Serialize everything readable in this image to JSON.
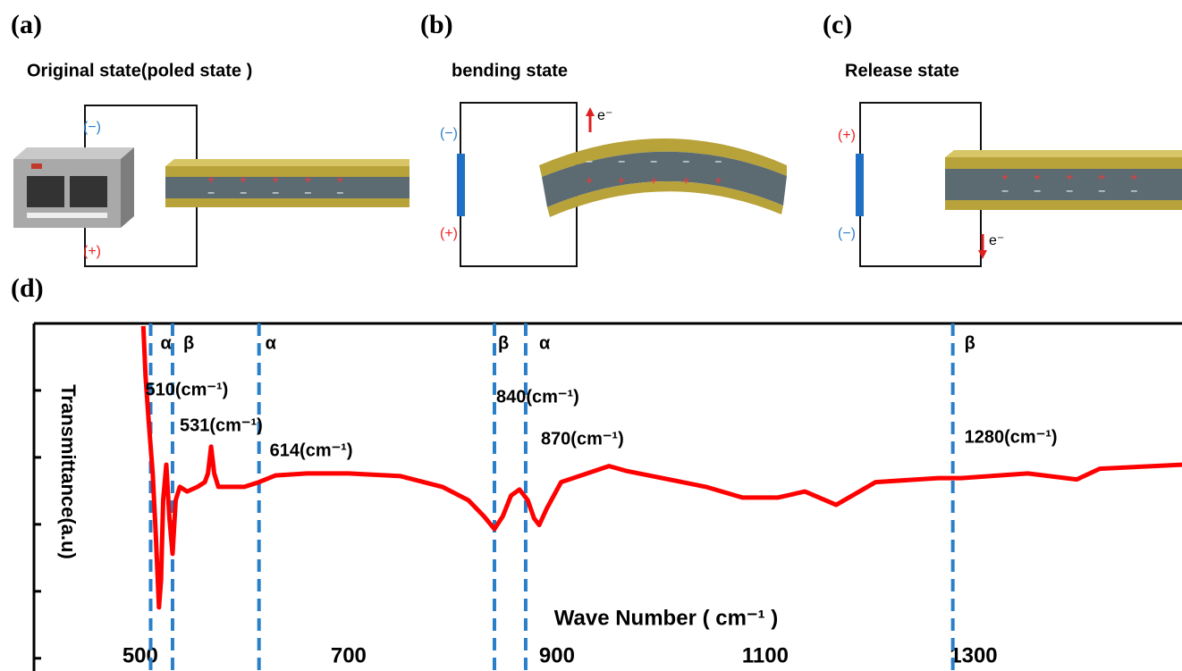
{
  "panels": [
    {
      "label": "(a)",
      "title": "Original state(poled state )",
      "top_terminal": "(−)",
      "bottom_terminal": "(+)",
      "charges_top": "+ + + + +",
      "charges_bottom": "− − − − −"
    },
    {
      "label": "(b)",
      "title": "bending state",
      "top_terminal": "(−)",
      "bottom_terminal": "(+)",
      "electron": "e⁻",
      "charges_top": "− − − − −",
      "charges_bottom": "+ + + + +"
    },
    {
      "label": "(c)",
      "title": "Release state",
      "top_terminal": "(+)",
      "bottom_terminal": "(−)",
      "electron": "e⁻",
      "charges_top": "+ + + + +",
      "charges_bottom": "− − − − −"
    }
  ],
  "chart_data": {
    "type": "line",
    "label": "(d)",
    "xlabel": "Wave Number ( cm⁻¹ )",
    "ylabel": "Transmittance(a.u)",
    "x": [
      503,
      505,
      508,
      510,
      512,
      515,
      518,
      520,
      522,
      525,
      528,
      531,
      534,
      538,
      545,
      555,
      562,
      565,
      568,
      571,
      575,
      585,
      600,
      614,
      630,
      660,
      700,
      750,
      790,
      815,
      830,
      840,
      848,
      856,
      864,
      872,
      878,
      883,
      890,
      904,
      950,
      966,
      1043,
      1078,
      1112,
      1138,
      1168,
      1206,
      1266,
      1288,
      1352,
      1399,
      1421,
      1500
    ],
    "values": [
      4.96,
      4.23,
      3.56,
      3.16,
      2.76,
      1.83,
      0.76,
      1.16,
      2.36,
      2.89,
      2.09,
      1.56,
      2.36,
      2.56,
      2.49,
      2.56,
      2.63,
      2.76,
      3.16,
      2.76,
      2.56,
      2.56,
      2.56,
      2.63,
      2.73,
      2.76,
      2.76,
      2.72,
      2.56,
      2.36,
      2.12,
      1.93,
      2.12,
      2.43,
      2.52,
      2.36,
      2.09,
      1.99,
      2.23,
      2.63,
      2.87,
      2.8,
      2.56,
      2.4,
      2.4,
      2.49,
      2.29,
      2.63,
      2.69,
      2.69,
      2.76,
      2.67,
      2.83,
      2.89
    ],
    "color": "#ff0000",
    "xlim": [
      398,
      1500
    ],
    "xticks": [
      500,
      700,
      900,
      1100,
      1300
    ],
    "ylim": [
      -0.19,
      5
    ],
    "yticks": [
      0,
      1,
      2,
      3,
      4
    ],
    "markers": [
      {
        "x": 510,
        "phase": "α",
        "label": "510(cm⁻¹)"
      },
      {
        "x": 531,
        "phase": "β",
        "label": "531(cm⁻¹)"
      },
      {
        "x": 614,
        "phase": "α",
        "label": "614(cm⁻¹)"
      },
      {
        "x": 840,
        "phase": "β",
        "label": "840(cm⁻¹)"
      },
      {
        "x": 870,
        "phase": "α",
        "label": "870(cm⁻¹)"
      },
      {
        "x": 1280,
        "phase": "β",
        "label": "1280(cm⁻¹)"
      }
    ],
    "marker_color": "#2a7fc9"
  }
}
